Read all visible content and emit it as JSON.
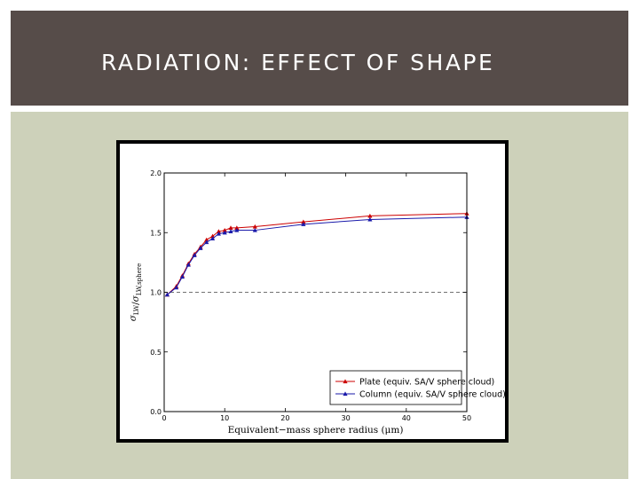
{
  "slide": {
    "title": "RADIATION: EFFECT OF SHAPE"
  },
  "colors": {
    "title_band": "#564c49",
    "content_band": "#cdd1ba",
    "plate": "#cc0000",
    "column": "#1a1aaa"
  },
  "chart_data": {
    "type": "line",
    "title": "",
    "xlabel": "Equivalent−mass sphere radius (μm)",
    "ylabel": "σ_LW / σ_LW,sphere",
    "xlim": [
      0,
      50
    ],
    "ylim": [
      0.0,
      2.0
    ],
    "xticks": [
      "0",
      "10",
      "20",
      "30",
      "40",
      "50"
    ],
    "yticks": [
      "0.0",
      "0.5",
      "1.0",
      "1.5",
      "2.0"
    ],
    "grid": false,
    "reference_line": {
      "y": 1.0,
      "style": "dashed"
    },
    "legend": {
      "position": "lower-right"
    },
    "series": [
      {
        "name": "Plate (equiv. SA/V sphere cloud)",
        "color": "#cc0000",
        "marker": "triangle",
        "x": [
          0.5,
          2,
          3,
          4,
          5,
          6,
          7,
          8,
          9,
          10,
          11,
          12,
          15,
          23,
          34,
          50
        ],
        "y": [
          0.98,
          1.05,
          1.14,
          1.24,
          1.32,
          1.38,
          1.44,
          1.47,
          1.51,
          1.52,
          1.54,
          1.54,
          1.55,
          1.59,
          1.64,
          1.66
        ]
      },
      {
        "name": "Column (equiv. SA/V sphere cloud)",
        "color": "#1a1aaa",
        "marker": "triangle",
        "x": [
          0.5,
          2,
          3,
          4,
          5,
          6,
          7,
          8,
          9,
          10,
          11,
          12,
          15,
          23,
          34,
          50
        ],
        "y": [
          0.98,
          1.04,
          1.13,
          1.23,
          1.31,
          1.37,
          1.42,
          1.45,
          1.49,
          1.5,
          1.51,
          1.52,
          1.52,
          1.57,
          1.61,
          1.63
        ]
      }
    ]
  }
}
